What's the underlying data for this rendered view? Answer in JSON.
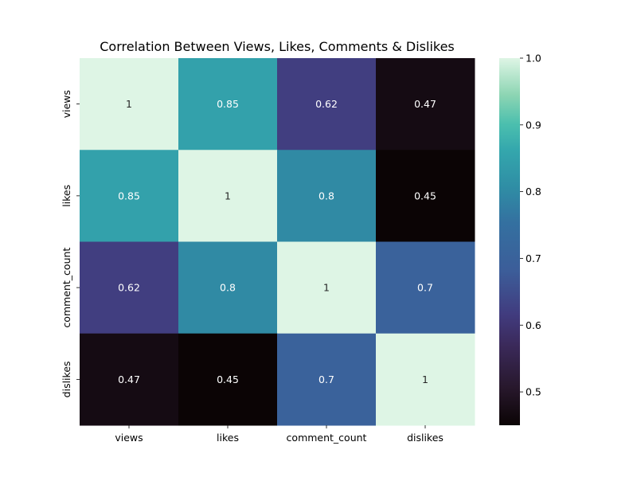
{
  "chart_data": {
    "type": "heatmap",
    "title": "Correlation Between Views, Likes, Comments & Dislikes",
    "x_labels": [
      "views",
      "likes",
      "comment_count",
      "dislikes"
    ],
    "y_labels": [
      "views",
      "likes",
      "comment_count",
      "dislikes"
    ],
    "values": [
      [
        1,
        0.85,
        0.62,
        0.47
      ],
      [
        0.85,
        1,
        0.8,
        0.45
      ],
      [
        0.62,
        0.8,
        1,
        0.7
      ],
      [
        0.47,
        0.45,
        0.7,
        1
      ]
    ],
    "annotations": [
      [
        "1",
        "0.85",
        "0.62",
        "0.47"
      ],
      [
        "0.85",
        "1",
        "0.8",
        "0.45"
      ],
      [
        "0.62",
        "0.8",
        "1",
        "0.7"
      ],
      [
        "0.47",
        "0.45",
        "0.7",
        "1"
      ]
    ],
    "colormap": "mako",
    "vmin": 0.45,
    "vmax": 1.0,
    "colorbar": {
      "ticks": [
        0.5,
        0.6,
        0.7,
        0.8,
        0.9,
        1.0
      ],
      "tick_labels": [
        "0.5",
        "0.6",
        "0.7",
        "0.8",
        "0.9",
        "1.0"
      ],
      "placement": "right"
    },
    "grid": false
  }
}
